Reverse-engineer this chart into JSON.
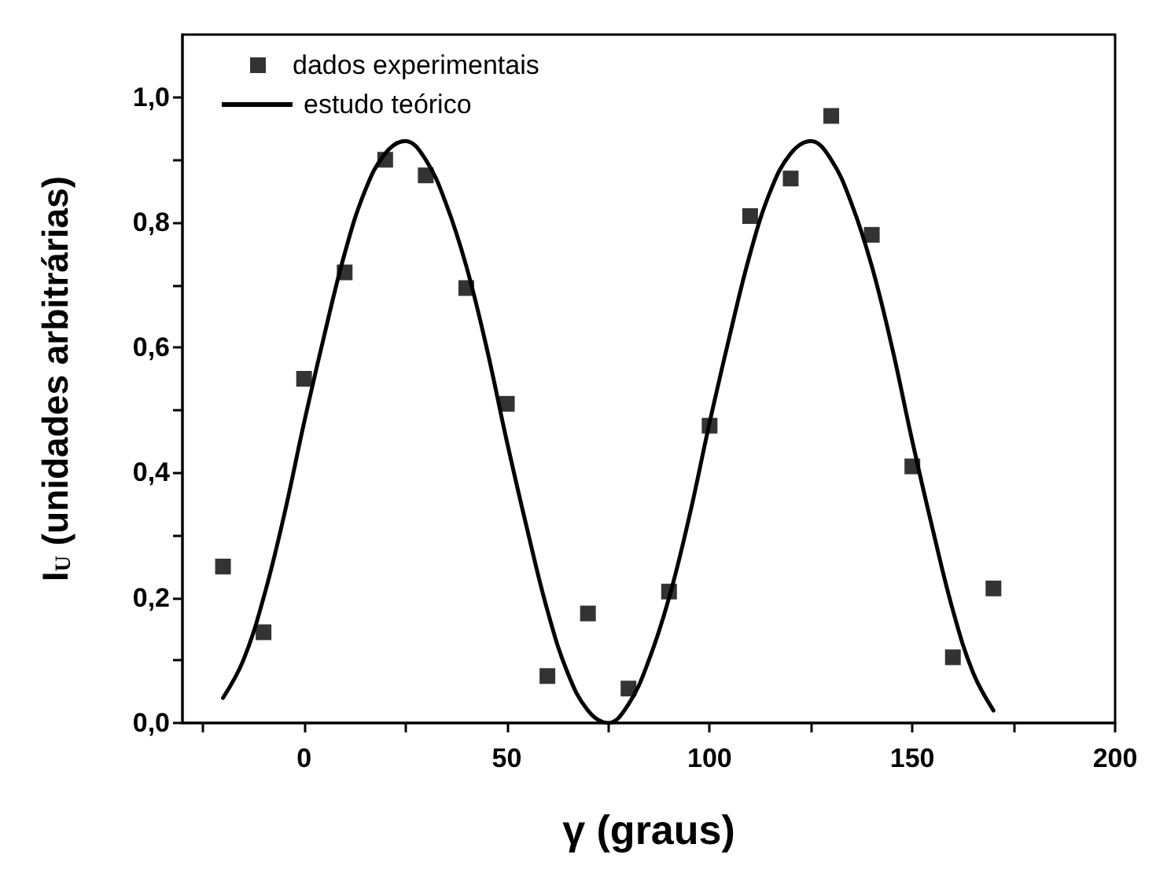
{
  "chart_data": {
    "type": "scatter",
    "xlabel": "γ (graus)",
    "ylabel": "I$_{U}$ (unidades arbitrárias)",
    "xlim": [
      -30,
      200
    ],
    "xticks": [
      {
        "value": -25,
        "label": null
      },
      0,
      {
        "value": 25,
        "label": null
      },
      50,
      {
        "value": 75,
        "label": null
      },
      100,
      {
        "value": 125,
        "label": null
      },
      150,
      {
        "value": 175,
        "label": null
      },
      200
    ],
    "ylim": [
      0,
      1.1
    ],
    "yticks": [
      {
        "value": 0,
        "label": "0,0"
      },
      {
        "value": 0.1,
        "label": null
      },
      {
        "value": 0.2,
        "label": "0,2"
      },
      {
        "value": 0.3,
        "label": null
      },
      {
        "value": 0.4,
        "label": "0,4"
      },
      {
        "value": 0.5,
        "label": null
      },
      {
        "value": 0.6,
        "label": "0,6"
      },
      {
        "value": 0.7,
        "label": null
      },
      {
        "value": 0.8,
        "label": "0,8"
      },
      {
        "value": 0.9,
        "label": null
      },
      {
        "value": 1.0,
        "label": "1,0"
      }
    ],
    "grid": false,
    "legend": "top left",
    "series": [
      {
        "name": "dados experimentais",
        "type": "scatter",
        "marker": "square",
        "color": "#000000",
        "x": [
          -20,
          -10,
          0,
          10,
          20,
          30,
          40,
          50,
          60,
          70,
          80,
          90,
          100,
          110,
          120,
          130,
          140,
          150,
          160,
          170
        ],
        "values": [
          0.25,
          0.145,
          0.55,
          0.72,
          0.9,
          0.875,
          0.695,
          0.51,
          0.075,
          0.175,
          0.055,
          0.21,
          0.475,
          0.81,
          0.87,
          0.97,
          0.78,
          0.41,
          0.105,
          0.215
        ]
      },
      {
        "name": "estudo teórico",
        "type": "line",
        "marker": "none",
        "line_style": "solid",
        "color": "#000000",
        "x": [
          -20,
          -15,
          -10,
          -5,
          0,
          5,
          10,
          15,
          20,
          25,
          30,
          35,
          40,
          45,
          50,
          55,
          60,
          65,
          70,
          75,
          80,
          85,
          90,
          95,
          100,
          105,
          110,
          115,
          120,
          125,
          130,
          135,
          140,
          145,
          150,
          155,
          160,
          165,
          170
        ],
        "values": [
          0.04,
          0.1,
          0.2,
          0.33,
          0.48,
          0.62,
          0.75,
          0.85,
          0.91,
          0.93,
          0.9,
          0.83,
          0.73,
          0.6,
          0.45,
          0.31,
          0.18,
          0.08,
          0.02,
          0.0,
          0.03,
          0.1,
          0.2,
          0.33,
          0.48,
          0.62,
          0.75,
          0.85,
          0.91,
          0.93,
          0.9,
          0.83,
          0.73,
          0.6,
          0.45,
          0.31,
          0.18,
          0.08,
          0.02
        ]
      }
    ]
  }
}
